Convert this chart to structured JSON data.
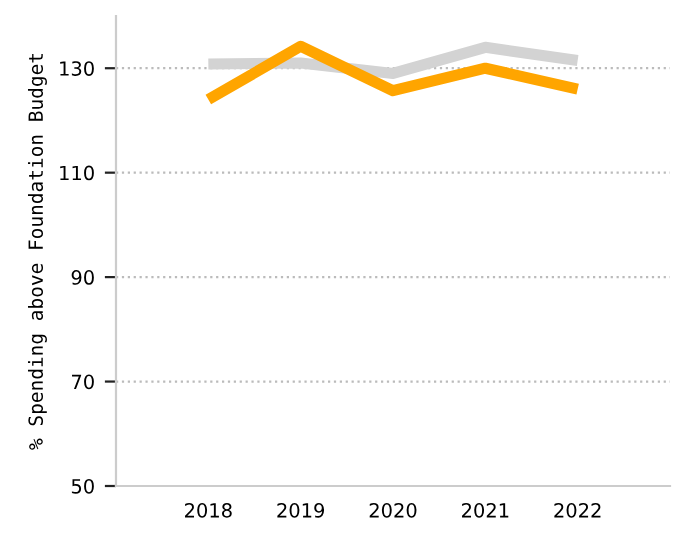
{
  "chart_data": {
    "type": "line",
    "ylabel": "% Spending above Foundation Budget",
    "x": [
      2018,
      2019,
      2020,
      2021,
      2022
    ],
    "series": [
      {
        "color": "#d3d3d3",
        "values": [
          130.8,
          131,
          129,
          134,
          131.5
        ]
      },
      {
        "color": "#ffa500",
        "values": [
          124,
          134.2,
          125.7,
          130,
          126
        ]
      }
    ],
    "xlim": [
      2017,
      2023
    ],
    "xticks": [
      2018,
      2019,
      2020,
      2021,
      2022
    ],
    "ylim": [
      50,
      140
    ],
    "yticks": [
      50,
      70,
      90,
      110,
      130
    ],
    "grid": "y"
  }
}
